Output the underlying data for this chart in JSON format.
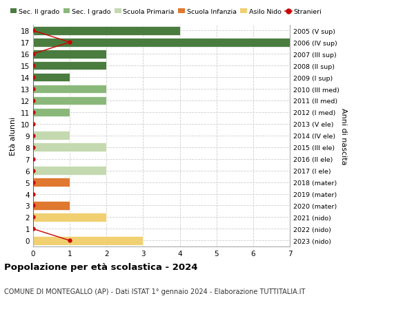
{
  "ages": [
    18,
    17,
    16,
    15,
    14,
    13,
    12,
    11,
    10,
    9,
    8,
    7,
    6,
    5,
    4,
    3,
    2,
    1,
    0
  ],
  "right_labels": [
    "2005 (V sup)",
    "2006 (IV sup)",
    "2007 (III sup)",
    "2008 (II sup)",
    "2009 (I sup)",
    "2010 (III med)",
    "2011 (II med)",
    "2012 (I med)",
    "2013 (V ele)",
    "2014 (IV ele)",
    "2015 (III ele)",
    "2016 (II ele)",
    "2017 (I ele)",
    "2018 (mater)",
    "2019 (mater)",
    "2020 (mater)",
    "2021 (nido)",
    "2022 (nido)",
    "2023 (nido)"
  ],
  "bar_values": [
    4,
    7,
    2,
    2,
    1,
    2,
    2,
    1,
    0,
    1,
    2,
    0,
    2,
    1,
    0,
    1,
    2,
    0,
    3
  ],
  "bar_colors": [
    "#4a7c3f",
    "#4a7c3f",
    "#4a7c3f",
    "#4a7c3f",
    "#4a7c3f",
    "#8ab87a",
    "#8ab87a",
    "#8ab87a",
    "#c5d9b0",
    "#c5d9b0",
    "#c5d9b0",
    "#c5d9b0",
    "#c5d9b0",
    "#e07830",
    "#e07830",
    "#e07830",
    "#f0d070",
    "#f0d070",
    "#f0d070"
  ],
  "stranieri_x": [
    0,
    1,
    0,
    0,
    0,
    0,
    0,
    0,
    0,
    0,
    0,
    0,
    0,
    0,
    0,
    0,
    0,
    0,
    1
  ],
  "stranieri_y": [
    18,
    17,
    16,
    15,
    14,
    13,
    12,
    11,
    10,
    9,
    8,
    7,
    6,
    5,
    4,
    3,
    2,
    1,
    0
  ],
  "legend_labels": [
    "Sec. II grado",
    "Sec. I grado",
    "Scuola Primaria",
    "Scuola Infanzia",
    "Asilo Nido",
    "Stranieri"
  ],
  "legend_colors": [
    "#4a7c3f",
    "#8ab87a",
    "#c5d9b0",
    "#e07830",
    "#f0d070",
    "#cc0000"
  ],
  "title": "Popolazione per età scolastica - 2024",
  "subtitle": "COMUNE DI MONTEGALLO (AP) - Dati ISTAT 1° gennaio 2024 - Elaborazione TUTTITALIA.IT",
  "ylabel": "Età alunni",
  "right_ylabel": "Anni di nascita",
  "xlim": [
    0,
    7
  ],
  "ylim": [
    -0.5,
    18.5
  ],
  "bg_color": "#ffffff",
  "grid_color": "#cccccc"
}
